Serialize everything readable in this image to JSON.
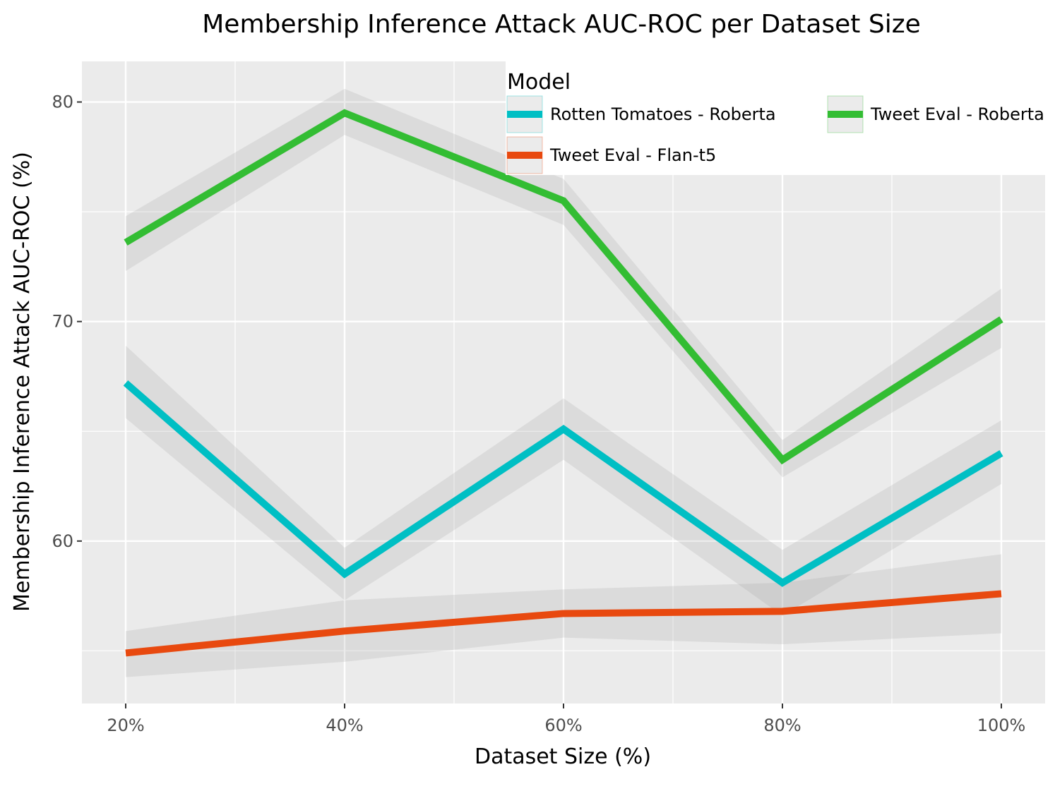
{
  "chart_data": {
    "type": "line",
    "title": "Membership Inference Attack AUC-ROC per Dataset Size",
    "xlabel": "Dataset Size (%)",
    "ylabel": "Membership Inference Attack AUC-ROC (%)",
    "categories": [
      "20%",
      "40%",
      "60%",
      "80%",
      "100%"
    ],
    "y_ticks": [
      60,
      70,
      80
    ],
    "y_tick_labels": [
      "60",
      "70",
      "80"
    ],
    "ylim": [
      52.6,
      81.85
    ],
    "grid": true,
    "legend": {
      "title": "Model",
      "placement": "top-right",
      "entries": [
        "Rotten Tomatoes - Roberta",
        "Tweet Eval - Roberta",
        "Tweet Eval - Flan-t5"
      ]
    },
    "series": [
      {
        "name": "Rotten Tomatoes - Roberta",
        "color": "#00BFC4",
        "values": [
          67.2,
          58.5,
          65.1,
          58.1,
          64.0
        ],
        "band_lower": [
          65.6,
          57.3,
          63.7,
          56.6,
          62.6
        ],
        "band_upper": [
          68.9,
          59.7,
          66.5,
          59.6,
          65.5
        ]
      },
      {
        "name": "Tweet Eval - Roberta",
        "color": "#33BD33",
        "values": [
          73.6,
          79.5,
          75.5,
          63.7,
          70.1
        ],
        "band_lower": [
          72.3,
          78.5,
          74.4,
          62.9,
          68.8
        ],
        "band_upper": [
          74.8,
          80.6,
          76.5,
          64.6,
          71.5
        ]
      },
      {
        "name": "Tweet Eval - Flan-t5",
        "color": "#E8490F",
        "values": [
          54.9,
          55.9,
          56.7,
          56.8,
          57.6
        ],
        "band_lower": [
          53.8,
          54.5,
          55.6,
          55.3,
          55.8
        ],
        "band_upper": [
          55.9,
          57.3,
          57.8,
          58.1,
          59.4
        ]
      }
    ]
  },
  "colors": {
    "panel_background": "#EBEBEB",
    "grid_line": "#FFFFFF",
    "band_fill": "#999999"
  }
}
